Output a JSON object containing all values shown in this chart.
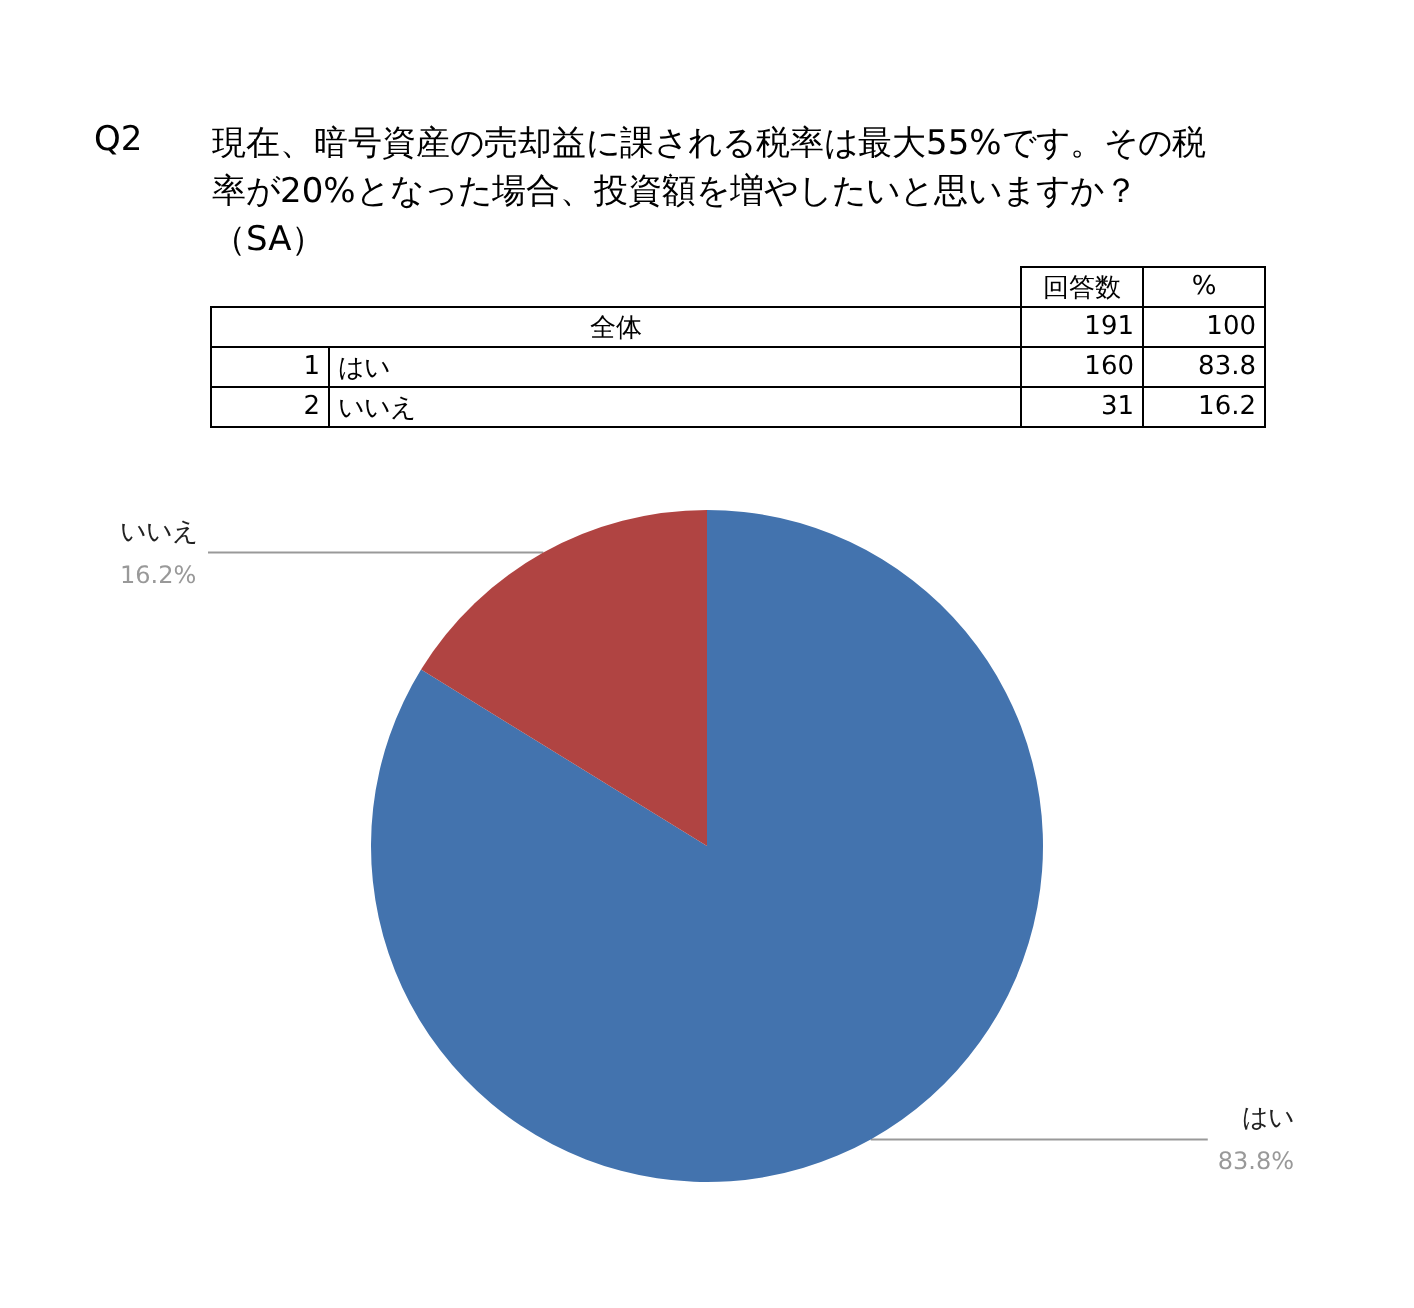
{
  "chart_data": {
    "type": "pie",
    "title": "Q2",
    "subtitle": "現在、暗号資産の売却益に課される税率は最大55%です。その税率が20%となった場合、投資額を増やしたいと思いますか？（SA）",
    "categories": [
      "はい",
      "いいえ"
    ],
    "values": [
      83.8,
      16.2
    ],
    "value_labels": [
      "83.8%",
      "16.2%"
    ],
    "colors": [
      "#4373ae",
      "#b04442"
    ],
    "annotations": [
      "回答数",
      "%",
      "全体",
      "191",
      "100",
      "1",
      "160",
      "83.8",
      "2",
      "31",
      "16.2"
    ],
    "legend": false
  }
}
